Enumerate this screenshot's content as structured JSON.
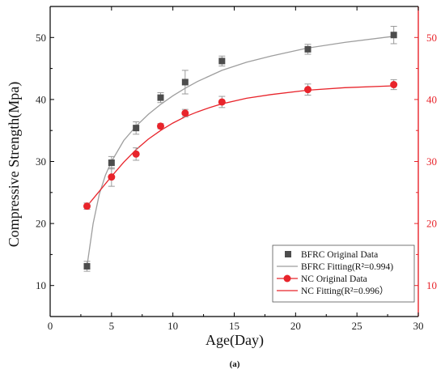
{
  "chart_data": {
    "type": "scatter",
    "xlabel": "Age(Day)",
    "ylabel": "Compressive Strength(Mpa)",
    "xlim": [
      0,
      30
    ],
    "ylim": [
      5,
      55
    ],
    "y2lim": [
      5,
      55
    ],
    "x_ticks": [
      "0",
      "5",
      "10",
      "15",
      "20",
      "25",
      "30"
    ],
    "y_ticks": [
      "10",
      "20",
      "30",
      "40",
      "50"
    ],
    "y2_ticks": [
      "10",
      "20",
      "30",
      "40",
      "50"
    ],
    "caption": "(a)",
    "legend_position": "bottom-right",
    "grid": false,
    "colors": {
      "bfrc": "#4d4d4d",
      "bfrc_fit": "#9e9e9e",
      "nc": "#e8242b",
      "right_axis": "#e8242b",
      "axis": "#000000"
    },
    "series": [
      {
        "name": "BFRC Original Data",
        "marker": "square",
        "x": [
          3,
          5,
          7,
          9,
          11,
          14,
          21,
          28
        ],
        "y": [
          13.1,
          29.8,
          35.4,
          40.3,
          42.8,
          46.2,
          48.1,
          50.4
        ],
        "err": [
          0.8,
          1.0,
          1.0,
          0.8,
          1.9,
          0.8,
          0.8,
          1.4
        ]
      },
      {
        "name": "BFRC Fitting(R²=0.994)",
        "type": "fit",
        "x": [
          3,
          3.5,
          4,
          4.5,
          5,
          6,
          7,
          8,
          9,
          10,
          11,
          12,
          14,
          16,
          18,
          21,
          24,
          28
        ],
        "y": [
          13.1,
          20.0,
          24.7,
          27.8,
          30.0,
          33.4,
          35.7,
          37.6,
          39.2,
          40.6,
          41.8,
          42.9,
          44.7,
          46.0,
          47.0,
          48.3,
          49.2,
          50.2
        ]
      },
      {
        "name": "NC Original Data",
        "marker": "circle",
        "x": [
          3,
          5,
          7,
          9,
          11,
          14,
          21,
          28
        ],
        "y": [
          22.8,
          27.5,
          31.2,
          35.7,
          37.8,
          39.6,
          41.6,
          42.4
        ],
        "err": [
          0.5,
          1.5,
          1.0,
          0.4,
          0.6,
          0.9,
          0.9,
          0.8
        ]
      },
      {
        "name": "NC Fitting(R²=0.996）",
        "type": "fit",
        "x": [
          3,
          4,
          5,
          6,
          7,
          8,
          9,
          10,
          11,
          12,
          13,
          14,
          16,
          18,
          21,
          24,
          28
        ],
        "y": [
          22.8,
          25.2,
          27.6,
          29.9,
          31.9,
          33.6,
          35.0,
          36.2,
          37.2,
          38.0,
          38.7,
          39.3,
          40.2,
          40.8,
          41.5,
          41.9,
          42.2
        ]
      }
    ]
  }
}
